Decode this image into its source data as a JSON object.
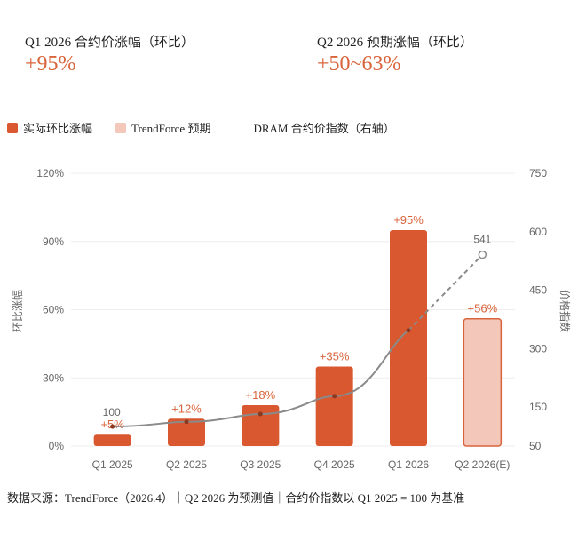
{
  "kpis": [
    {
      "label": "Q1 2026 合约价涨幅（环比）",
      "value": "+95%"
    },
    {
      "label": "Q2 2026 预期涨幅（环比）",
      "value": "+50~63%"
    }
  ],
  "legend": [
    {
      "label": "实际环比涨幅",
      "color": "#d9582f"
    },
    {
      "label": "TrendForce 预期",
      "color": "#f4c7bb"
    },
    {
      "label": "DRAM 合约价指数（右轴）",
      "color": ""
    }
  ],
  "footer": "数据来源：TrendForce（2026.4）｜Q2 2026 为预测值｜合约价指数以 Q1 2025 = 100 为基准",
  "chart_data": {
    "type": "bar",
    "categories": [
      "Q1 2025",
      "Q2 2025",
      "Q3 2025",
      "Q4 2025",
      "Q1 2026",
      "Q2 2026(E)"
    ],
    "series": [
      {
        "name": "实际环比涨幅",
        "type": "bar",
        "axis": "left",
        "values": [
          5,
          12,
          18,
          35,
          95,
          null
        ],
        "labels": [
          "+5%",
          "+12%",
          "+18%",
          "+35%",
          "+95%",
          ""
        ],
        "color": "#d9582f"
      },
      {
        "name": "TrendForce 预期",
        "type": "bar",
        "axis": "left",
        "values": [
          null,
          null,
          null,
          null,
          null,
          56
        ],
        "labels": [
          "",
          "",
          "",
          "",
          "",
          "+56%"
        ],
        "color": "#f4c7bb"
      },
      {
        "name": "DRAM 合约价指数（右轴）",
        "type": "line",
        "axis": "right",
        "values": [
          100,
          112,
          132,
          178,
          347,
          541
        ],
        "labels": [
          "100",
          "",
          "",
          "",
          "",
          "541"
        ],
        "projected_from_index": 4,
        "color": "#888888"
      }
    ],
    "ylabel": "环比涨幅",
    "y2label": "价格指数",
    "ylim": [
      0,
      120
    ],
    "yticks": [
      "0%",
      "30%",
      "60%",
      "90%",
      "120%"
    ],
    "y2lim": [
      50,
      750
    ],
    "y2ticks": [
      "50",
      "150",
      "300",
      "450",
      "600",
      "750"
    ],
    "grid": true
  }
}
